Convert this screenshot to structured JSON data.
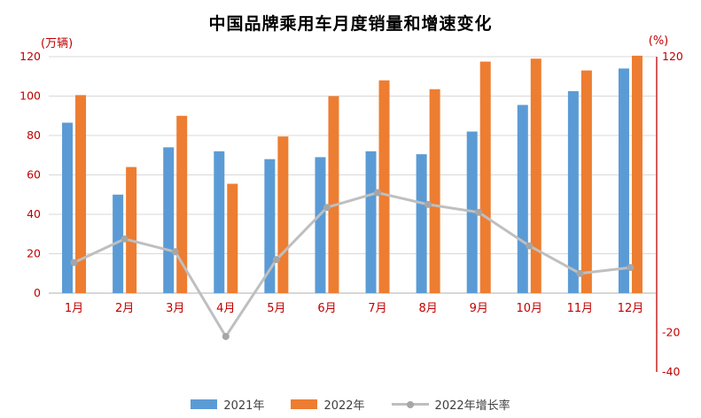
{
  "title": "中国品牌乘用车月度销量和增速变化",
  "chart_data": {
    "type": "combo-bar-line",
    "title": "中国品牌乘用车月度销量和增速变化",
    "categories": [
      "1月",
      "2月",
      "3月",
      "4月",
      "5月",
      "6月",
      "7月",
      "8月",
      "9月",
      "10月",
      "11月",
      "12月"
    ],
    "series": [
      {
        "name": "2021年",
        "type": "bar",
        "axis": "left",
        "color": "#5B9BD5",
        "values": [
          86.5,
          50,
          74,
          72,
          68,
          69,
          72,
          70.5,
          82,
          95.5,
          102.5,
          114
        ]
      },
      {
        "name": "2022年",
        "type": "bar",
        "axis": "left",
        "color": "#ED7D31",
        "values": [
          100.5,
          64,
          90,
          55.5,
          79.5,
          100,
          108,
          103.5,
          117.5,
          119,
          113,
          120.5
        ]
      },
      {
        "name": "2022年增长率",
        "type": "line",
        "axis": "right",
        "color": "#BFBFBF",
        "values": [
          15.5,
          27.5,
          21,
          -22,
          17,
          43.5,
          51,
          45,
          41,
          24,
          10,
          13
        ]
      }
    ],
    "left_axis": {
      "unit_label": "(万辆)",
      "min": 0,
      "max": 120,
      "step": 20,
      "ticks": [
        0,
        20,
        40,
        60,
        80,
        100,
        120
      ]
    },
    "right_axis": {
      "unit_label": "(%)",
      "min": -40,
      "max": 120,
      "tick_values": [
        120,
        -20,
        -40
      ]
    },
    "grid": "horizontal",
    "legend_position": "bottom",
    "tick_color": "#C00000",
    "grid_color": "#D9D9D9",
    "axis_line_color": "#BFBFBF",
    "right_axis_line_color": "#C00000",
    "marker_color": "#A6A6A6"
  },
  "legend": {
    "items": [
      {
        "label": "2021年",
        "marker": "rect",
        "color": "#5B9BD5"
      },
      {
        "label": "2022年",
        "marker": "rect",
        "color": "#ED7D31"
      },
      {
        "label": "2022年增长率",
        "marker": "line-dot",
        "color": "#BFBFBF"
      }
    ]
  }
}
